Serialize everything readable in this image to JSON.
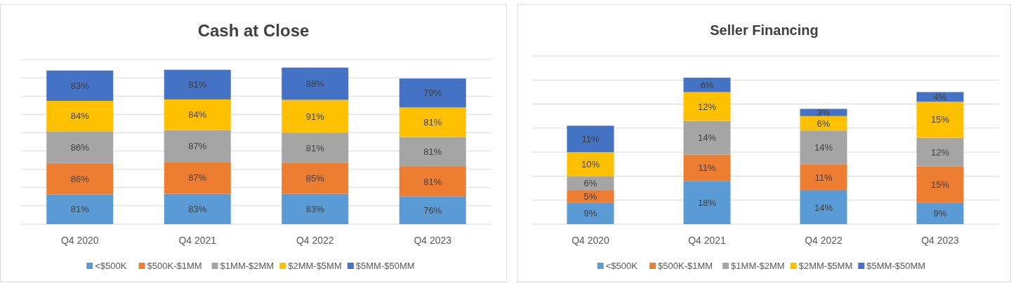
{
  "chart_data": [
    {
      "type": "bar",
      "title": "Cash at Close",
      "stacked": true,
      "categories": [
        "Q4 2020",
        "Q4 2021",
        "Q4 2022",
        "Q4 2023"
      ],
      "ylim": [
        0,
        450
      ],
      "yticks": [
        {
          "value": 0,
          "label": null
        },
        {
          "value": 50,
          "label": null
        },
        {
          "value": 100,
          "label": null
        },
        {
          "value": 150,
          "label": null
        },
        {
          "value": 200,
          "label": null
        },
        {
          "value": 250,
          "label": null
        },
        {
          "value": 300,
          "label": null
        },
        {
          "value": 350,
          "label": null
        },
        {
          "value": 400,
          "label": null
        },
        {
          "value": 450,
          "label": null
        }
      ],
      "grid": "y",
      "legend": "bottom",
      "tick_labels": "x",
      "series": [
        {
          "name": "<$500K",
          "color": "#5b9bd5",
          "values": [
            81,
            83,
            83,
            76
          ],
          "value_labels": [
            "81%",
            "83%",
            "83%",
            "76%"
          ]
        },
        {
          "name": "$500K-$1MM",
          "color": "#ed7d31",
          "values": [
            86,
            87,
            85,
            81
          ],
          "value_labels": [
            "86%",
            "87%",
            "85%",
            "81%"
          ]
        },
        {
          "name": "$1MM-$2MM",
          "color": "#a5a5a5",
          "values": [
            86,
            87,
            81,
            81
          ],
          "value_labels": [
            "86%",
            "87%",
            "81%",
            "81%"
          ]
        },
        {
          "name": "$2MM-$5MM",
          "color": "#ffc000",
          "values": [
            84,
            84,
            91,
            81
          ],
          "value_labels": [
            "84%",
            "84%",
            "91%",
            "81%"
          ]
        },
        {
          "name": "$5MM-$50MM",
          "color": "#4472c4",
          "values": [
            83,
            81,
            88,
            79
          ],
          "value_labels": [
            "83%",
            "81%",
            "88%",
            "79%"
          ]
        }
      ]
    },
    {
      "type": "bar",
      "title": "Seller Financing",
      "stacked": true,
      "categories": [
        "Q4 2020",
        "Q4 2021",
        "Q4 2022",
        "Q4 2023"
      ],
      "ylim": [
        0,
        70
      ],
      "yticks": [
        {
          "value": 0,
          "label": null
        },
        {
          "value": 10,
          "label": null
        },
        {
          "value": 20,
          "label": null
        },
        {
          "value": 30,
          "label": null
        },
        {
          "value": 40,
          "label": null
        },
        {
          "value": 50,
          "label": null
        },
        {
          "value": 60,
          "label": null
        },
        {
          "value": 70,
          "label": null
        }
      ],
      "grid": "y",
      "legend": "bottom",
      "tick_labels": "x",
      "series": [
        {
          "name": "<$500K",
          "color": "#5b9bd5",
          "values": [
            9,
            18,
            14,
            9
          ],
          "value_labels": [
            "9%",
            "18%",
            "14%",
            "9%"
          ]
        },
        {
          "name": "$500K-$1MM",
          "color": "#ed7d31",
          "values": [
            5,
            11,
            11,
            15
          ],
          "value_labels": [
            "5%",
            "11%",
            "11%",
            "15%"
          ]
        },
        {
          "name": "$1MM-$2MM",
          "color": "#a5a5a5",
          "values": [
            6,
            14,
            14,
            12
          ],
          "value_labels": [
            "6%",
            "14%",
            "14%",
            "12%"
          ]
        },
        {
          "name": "$2MM-$5MM",
          "color": "#ffc000",
          "values": [
            10,
            12,
            6,
            15
          ],
          "value_labels": [
            "10%",
            "12%",
            "6%",
            "15%"
          ]
        },
        {
          "name": "$5MM-$50MM",
          "color": "#4472c4",
          "values": [
            11,
            6,
            3,
            4
          ],
          "value_labels": [
            "11%",
            "6%",
            "3%",
            "4%"
          ]
        }
      ]
    }
  ]
}
